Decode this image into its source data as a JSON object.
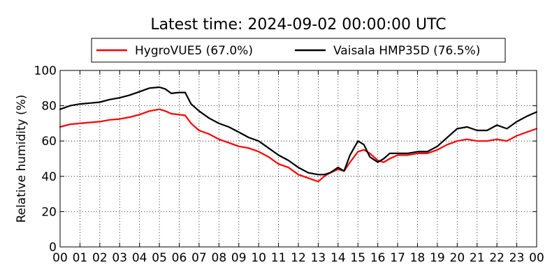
{
  "chart_data": {
    "type": "line",
    "title": "Latest time: 2024-09-02 00:00:00 UTC",
    "xlabel": "",
    "ylabel": "Relative humidity (%)",
    "ylim": [
      0,
      100
    ],
    "xlim": [
      0,
      24
    ],
    "y_ticks": [
      0,
      20,
      40,
      60,
      80,
      100
    ],
    "x_ticks": [
      0,
      1,
      2,
      3,
      4,
      5,
      6,
      7,
      8,
      9,
      10,
      11,
      12,
      13,
      14,
      15,
      16,
      17,
      18,
      19,
      20,
      21,
      22,
      23,
      24
    ],
    "x_tick_labels": [
      "00",
      "01",
      "02",
      "03",
      "04",
      "05",
      "06",
      "07",
      "08",
      "09",
      "10",
      "11",
      "12",
      "13",
      "14",
      "15",
      "16",
      "17",
      "18",
      "19",
      "20",
      "21",
      "22",
      "23",
      "00"
    ],
    "grid": true,
    "legend_position": "top-center",
    "series": [
      {
        "name": "HygroVUE5 (67.0%)",
        "color": "#ff0000",
        "x": [
          0,
          0.5,
          1,
          1.5,
          2,
          2.5,
          3,
          3.5,
          4,
          4.5,
          5,
          5.3,
          5.6,
          6,
          6.3,
          6.6,
          7,
          7.5,
          8,
          8.5,
          9,
          9.5,
          10,
          10.5,
          11,
          11.5,
          12,
          12.5,
          13,
          13.3,
          13.6,
          14,
          14.3,
          14.6,
          15,
          15.3,
          15.6,
          16,
          16.3,
          16.6,
          17,
          17.5,
          18,
          18.5,
          19,
          19.5,
          20,
          20.5,
          21,
          21.5,
          22,
          22.5,
          23,
          23.5,
          24
        ],
        "values": [
          68,
          69.5,
          70,
          70.5,
          71,
          72,
          72.5,
          73.5,
          75,
          77,
          78,
          77,
          75.5,
          75,
          74.5,
          70,
          66,
          64,
          61,
          59,
          57,
          56,
          54,
          51,
          47,
          45,
          41,
          39,
          37,
          40,
          42,
          44,
          43,
          48,
          54,
          55,
          53,
          49,
          48,
          50,
          52,
          52,
          53,
          53,
          55,
          58,
          60,
          61,
          60,
          60,
          61,
          60,
          63,
          65,
          67
        ]
      },
      {
        "name": "Vaisala HMP35D (76.5%)",
        "color": "#000000",
        "x": [
          0,
          0.5,
          1,
          1.5,
          2,
          2.5,
          3,
          3.5,
          4,
          4.5,
          5,
          5.3,
          5.6,
          6,
          6.3,
          6.6,
          7,
          7.5,
          8,
          8.5,
          9,
          9.5,
          10,
          10.5,
          11,
          11.5,
          12,
          12.5,
          13,
          13.3,
          13.6,
          14,
          14.3,
          14.6,
          15,
          15.3,
          15.6,
          16,
          16.3,
          16.6,
          17,
          17.5,
          18,
          18.5,
          19,
          19.5,
          20,
          20.5,
          21,
          21.5,
          22,
          22.5,
          23,
          23.5,
          24
        ],
        "values": [
          78,
          80,
          81,
          81.5,
          82,
          83.5,
          84.5,
          86,
          88,
          90,
          90.5,
          89.5,
          87,
          87.5,
          87.5,
          81,
          77,
          73,
          70,
          68,
          65,
          62,
          60,
          56,
          52,
          49,
          45,
          42,
          41,
          41,
          42,
          45,
          43,
          52,
          60,
          58,
          51,
          48,
          50,
          53,
          53,
          53,
          54,
          54,
          57,
          62,
          67,
          68,
          66,
          66,
          69,
          67,
          71,
          74,
          76.5
        ]
      }
    ]
  }
}
